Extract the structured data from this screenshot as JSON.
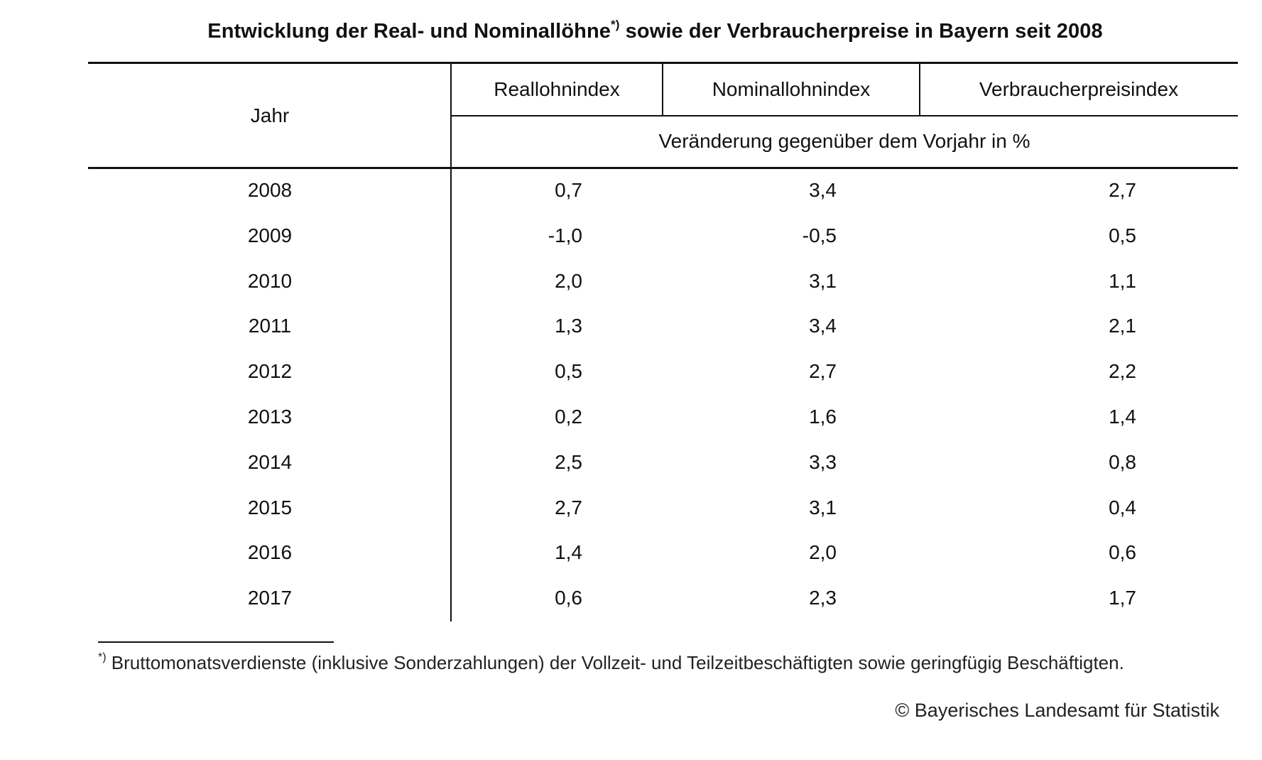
{
  "title": {
    "text_before": "Entwicklung der Real- und Nominallöhne",
    "superscript": "*)",
    "text_after": " sowie der Verbraucherpreise in Bayern seit 2008"
  },
  "table": {
    "header_year": "Jahr",
    "columns": [
      "Reallohnindex",
      "Nominallohnindex",
      "Verbraucherpreisindex"
    ],
    "subheader": "Veränderung gegenüber dem Vorjahr in %",
    "rows": [
      {
        "year": "2008",
        "values": [
          "0,7",
          "3,4",
          "2,7"
        ]
      },
      {
        "year": "2009",
        "values": [
          "-1,0",
          "-0,5",
          "0,5"
        ]
      },
      {
        "year": "2010",
        "values": [
          "2,0",
          "3,1",
          "1,1"
        ]
      },
      {
        "year": "2011",
        "values": [
          "1,3",
          "3,4",
          "2,1"
        ]
      },
      {
        "year": "2012",
        "values": [
          "0,5",
          "2,7",
          "2,2"
        ]
      },
      {
        "year": "2013",
        "values": [
          "0,2",
          "1,6",
          "1,4"
        ]
      },
      {
        "year": "2014",
        "values": [
          "2,5",
          "3,3",
          "0,8"
        ]
      },
      {
        "year": "2015",
        "values": [
          "2,7",
          "3,1",
          "0,4"
        ]
      },
      {
        "year": "2016",
        "values": [
          "1,4",
          "2,0",
          "0,6"
        ]
      },
      {
        "year": "2017",
        "values": [
          "0,6",
          "2,3",
          "1,7"
        ]
      }
    ]
  },
  "footnote": {
    "marker": "*)",
    "text": " Bruttomonatsverdienste (inklusive Sonderzahlungen) der Vollzeit- und Teilzeitbeschäftigten sowie geringfügig Beschäftigten."
  },
  "copyright": "© Bayerisches Landesamt für Statistik"
}
